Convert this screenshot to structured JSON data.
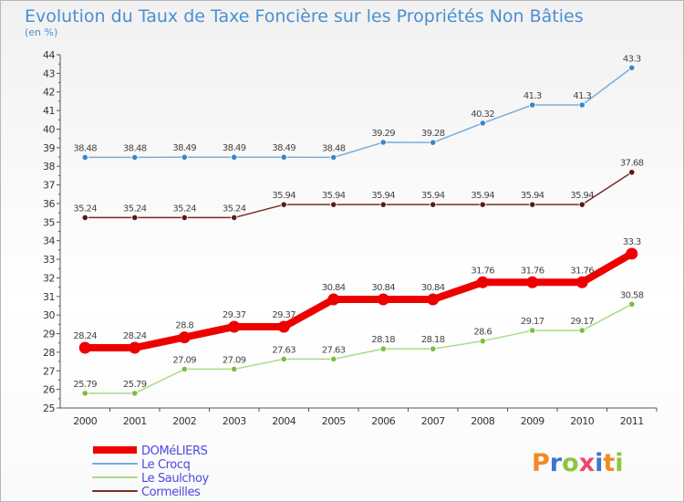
{
  "header": {
    "title": "Evolution du Taux de Taxe Foncière sur les Propriétés Non Bâties",
    "subtitle": "(en %)"
  },
  "brand": {
    "letters": [
      "P",
      "r",
      "o",
      "x",
      "i",
      "t",
      "i"
    ],
    "colors": [
      "#f08a24",
      "#3a78c8",
      "#8cc63f",
      "#e84a6f",
      "#3a78c8",
      "#f08a24",
      "#8cc63f"
    ]
  },
  "chart_data": {
    "type": "line",
    "x": [
      "2000",
      "2001",
      "2002",
      "2003",
      "2004",
      "2005",
      "2006",
      "2007",
      "2008",
      "2009",
      "2010",
      "2011"
    ],
    "ylim": [
      25,
      44
    ],
    "yticks": [
      25,
      26,
      27,
      28,
      29,
      30,
      31,
      32,
      33,
      34,
      35,
      36,
      37,
      38,
      39,
      40,
      41,
      42,
      43,
      44
    ],
    "grid": false,
    "legend_position": "bottom-left",
    "series": [
      {
        "name": "DOMéLIERS",
        "color": "#ee0000",
        "marker_color": "#ee0000",
        "values": [
          28.24,
          28.24,
          28.8,
          29.37,
          29.37,
          30.84,
          30.84,
          30.84,
          31.76,
          31.76,
          31.76,
          33.3
        ],
        "labels": [
          "28.24",
          "28.24",
          "28.8",
          "29.37",
          "29.37",
          "30.84",
          "30.84",
          "30.84",
          "31.76",
          "31.76",
          "31.76",
          "33.3"
        ]
      },
      {
        "name": "Le Crocq",
        "color": "#7aaedc",
        "marker_color": "#3a86c8",
        "values": [
          38.48,
          38.48,
          38.49,
          38.49,
          38.49,
          38.48,
          39.29,
          39.28,
          40.32,
          41.3,
          41.3,
          43.3
        ],
        "labels": [
          "38.48",
          "38.48",
          "38.49",
          "38.49",
          "38.49",
          "38.48",
          "39.29",
          "39.28",
          "40.32",
          "41.3",
          "41.3",
          "43.3"
        ]
      },
      {
        "name": "Le Saulchoy",
        "color": "#a8dc84",
        "marker_color": "#78c040",
        "values": [
          25.79,
          25.79,
          27.09,
          27.09,
          27.63,
          27.63,
          28.18,
          28.18,
          28.6,
          29.17,
          29.17,
          30.58
        ],
        "labels": [
          "25.79",
          "25.79",
          "27.09",
          "27.09",
          "27.63",
          "27.63",
          "28.18",
          "28.18",
          "28.6",
          "29.17",
          "29.17",
          "30.58"
        ]
      },
      {
        "name": "Cormeilles",
        "color": "#7a2a2a",
        "marker_color": "#5a1a1a",
        "values": [
          35.24,
          35.24,
          35.24,
          35.24,
          35.94,
          35.94,
          35.94,
          35.94,
          35.94,
          35.94,
          35.94,
          37.68
        ],
        "labels": [
          "35.24",
          "35.24",
          "35.24",
          "35.24",
          "35.94",
          "35.94",
          "35.94",
          "35.94",
          "35.94",
          "35.94",
          "35.94",
          "37.68"
        ]
      }
    ]
  }
}
